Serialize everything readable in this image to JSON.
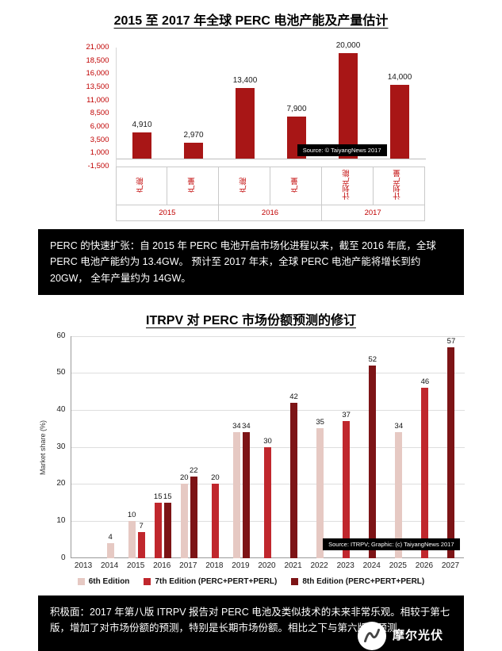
{
  "chart_data": [
    {
      "type": "bar",
      "title": "2015 至 2017 年全球 PERC 电池产能及产量估计",
      "categories": [
        "产能",
        "产量",
        "产能",
        "产量",
        "计划产能",
        "计划产量"
      ],
      "year_groups": [
        "2015",
        "2016",
        "2017"
      ],
      "values": [
        4910,
        2970,
        13400,
        7900,
        20000,
        14000
      ],
      "value_labels": [
        "4,910",
        "2,970",
        "13,400",
        "7,900",
        "20,000",
        "14,000"
      ],
      "ylim": [
        -1500,
        21000
      ],
      "yticks": [
        21000,
        18500,
        16000,
        13500,
        11000,
        8500,
        6000,
        3500,
        1000,
        -1500
      ],
      "ytick_labels": [
        "21,000",
        "18,500",
        "16,000",
        "13,500",
        "11,000",
        "8,500",
        "6,000",
        "3,500",
        "1,000",
        "-1,500"
      ],
      "bar_color": "#a81616",
      "axis_label_color": "#c00000",
      "grid": false,
      "legend_position": "none",
      "source": "Source: © TaiyangNews 2017"
    },
    {
      "type": "bar",
      "title": "ITRPV 对 PERC 市场份额预测的修订",
      "ylabel": "Market share (%)",
      "ylim": [
        0,
        60
      ],
      "yticks": [
        0,
        10,
        20,
        30,
        40,
        50,
        60
      ],
      "x": [
        "2013",
        "2014",
        "2015",
        "2016",
        "2017",
        "2018",
        "2019",
        "2020",
        "2021",
        "2022",
        "2023",
        "2024",
        "2025",
        "2026",
        "2027"
      ],
      "series": [
        {
          "name": "6th Edition",
          "color": "#e6c9c3",
          "points": {
            "2014": 4,
            "2015": 10,
            "2017": 20,
            "2019": 34,
            "2022": 35,
            "2025": 34
          }
        },
        {
          "name": "7th Edition (PERC+PERT+PERL)",
          "color": "#c0272d",
          "points": {
            "2015": 7,
            "2016": 15,
            "2018": 20,
            "2020": 30,
            "2023": 37,
            "2026": 46
          }
        },
        {
          "name": "8th Edition (PERC+PERT+PERL)",
          "color": "#7d1416",
          "points": {
            "2016": 15,
            "2017": 22,
            "2019": 34,
            "2021": 42,
            "2024": 52,
            "2027": 57
          }
        }
      ],
      "grid": true,
      "legend_position": "bottom",
      "source": "Source: ITRPV; Graphic: (c) TaiyangNews 2017"
    }
  ],
  "band1": {
    "text": "PERC 的快速扩张：自 2015 年 PERC 电池开启市场化进程以来，截至 2016 年底，全球 PERC 电池产能约为 13.4GW。 预计至 2017 年末，全球 PERC 电池产能将增长到约 20GW， 全年产量约为 14GW。"
  },
  "band2": {
    "text": "积极面：2017 年第八版 ITRPV 报告对 PERC 电池及类似技术的未来非常乐观。相较于第七版，增加了对市场份额的预测，特别是长期市场份额。相比之下与第六版的预测"
  },
  "watermark": {
    "name": "摩尔光伏"
  }
}
